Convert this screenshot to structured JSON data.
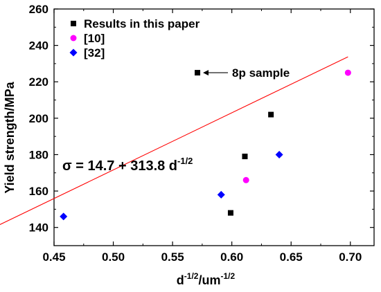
{
  "chart_data": {
    "type": "scatter",
    "xlabel": {
      "main": "d",
      "sup1": "-1/2",
      "mid": "/um",
      "sup2": "-1/2"
    },
    "ylabel": "Yield strength/MPa",
    "xlim": [
      0.45,
      0.72
    ],
    "ylim": [
      130,
      260
    ],
    "x_ticks": [
      "0.45",
      "0.50",
      "0.55",
      "0.60",
      "0.65",
      "0.70"
    ],
    "y_ticks": [
      "140",
      "160",
      "180",
      "200",
      "220",
      "240",
      "260"
    ],
    "grid": false,
    "legend_position": "top-left",
    "series": [
      {
        "name": "Results in this paper",
        "marker": "square",
        "color": "#000000",
        "points": [
          {
            "x": 0.571,
            "y": 225
          },
          {
            "x": 0.611,
            "y": 179
          },
          {
            "x": 0.633,
            "y": 202
          },
          {
            "x": 0.599,
            "y": 148
          }
        ]
      },
      {
        "name": "[10]",
        "marker": "circle",
        "color": "#ff00ff",
        "points": [
          {
            "x": 0.612,
            "y": 166
          },
          {
            "x": 0.698,
            "y": 225
          }
        ]
      },
      {
        "name": "[32]",
        "marker": "diamond",
        "color": "#0000ff",
        "points": [
          {
            "x": 0.458,
            "y": 146
          },
          {
            "x": 0.591,
            "y": 158
          },
          {
            "x": 0.64,
            "y": 180
          }
        ]
      }
    ],
    "fit_line": {
      "color": "#ff0000",
      "intercept": 14.7,
      "slope": 313.8,
      "equation": {
        "main": "σ = 14.7 + 313.8 d",
        "sup": "-1/2"
      }
    },
    "annotation": {
      "text": "8p sample",
      "target": {
        "x": 0.571,
        "y": 225
      }
    }
  }
}
